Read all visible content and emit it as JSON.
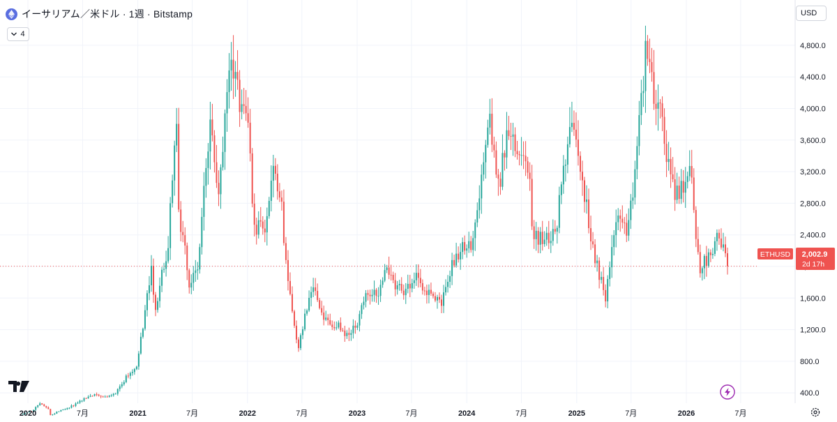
{
  "header": {
    "title": "イーサリアム／米ドル · 1週 · Bitstamp",
    "indicators_count": "4",
    "currency": "USD"
  },
  "price_label": {
    "symbol": "ETHUSD",
    "price": "2,002.9",
    "countdown": "2d 17h"
  },
  "colors": {
    "up": "#26a69a",
    "down": "#ef5350",
    "grid": "#f0f3fa",
    "axis_text": "#131722",
    "price_line": "#ef5350",
    "eth_badge": "#5a6ee0",
    "lightning": "#9c27b0"
  },
  "icons": {
    "logo": "tradingview-logo",
    "lightning": "lightning-icon",
    "settings": "gear-icon",
    "eth": "ethereum-icon",
    "chevron": "chevron-down-icon"
  },
  "chart_data": {
    "type": "candlestick",
    "symbol": "ETHUSD",
    "interval": "1W",
    "exchange": "Bitstamp",
    "current_price": 2002.9,
    "ylim": [
      0,
      5000
    ],
    "y_ticks": [
      400,
      800,
      1200,
      1600,
      2000,
      2400,
      2800,
      3200,
      3600,
      4000,
      4400,
      4800
    ],
    "y_tick_labels": [
      "400.0",
      "800.0",
      "1,200.0",
      "1,600.0",
      "2,000.0",
      "2,400.0",
      "2,800.0",
      "3,200.0",
      "3,600.0",
      "4,000.0",
      "4,400.0",
      "4,800.0"
    ],
    "x_ticks": [
      {
        "label": "2020",
        "date": "2020-01-01"
      },
      {
        "label": "7月",
        "date": "2020-07-01"
      },
      {
        "label": "2021",
        "date": "2021-01-01"
      },
      {
        "label": "7月",
        "date": "2021-07-01"
      },
      {
        "label": "2022",
        "date": "2022-01-01"
      },
      {
        "label": "7月",
        "date": "2022-07-01"
      },
      {
        "label": "2023",
        "date": "2023-01-01"
      },
      {
        "label": "7月",
        "date": "2023-07-01"
      },
      {
        "label": "2024",
        "date": "2024-01-01"
      },
      {
        "label": "7月",
        "date": "2024-07-01"
      },
      {
        "label": "2025",
        "date": "2025-01-01"
      },
      {
        "label": "7月",
        "date": "2025-07-01"
      },
      {
        "label": "2026",
        "date": "2026-01-01"
      },
      {
        "label": "7月",
        "date": "2026-07-01"
      }
    ],
    "grid": true,
    "weekly_close_keypoints": [
      [
        "2019-12-16",
        130
      ],
      [
        "2020-01-13",
        165
      ],
      [
        "2020-02-10",
        270
      ],
      [
        "2020-03-09",
        190
      ],
      [
        "2020-03-16",
        120
      ],
      [
        "2020-04-20",
        180
      ],
      [
        "2020-06-01",
        240
      ],
      [
        "2020-07-27",
        380
      ],
      [
        "2020-09-07",
        340
      ],
      [
        "2020-10-19",
        390
      ],
      [
        "2020-11-23",
        590
      ],
      [
        "2020-12-28",
        730
      ],
      [
        "2021-01-18",
        1250
      ],
      [
        "2021-02-15",
        1930
      ],
      [
        "2021-03-01",
        1500
      ],
      [
        "2021-04-12",
        2300
      ],
      [
        "2021-05-10",
        3950
      ],
      [
        "2021-05-17",
        2700
      ],
      [
        "2021-06-21",
        1800
      ],
      [
        "2021-07-19",
        2000
      ],
      [
        "2021-08-30",
        3900
      ],
      [
        "2021-09-27",
        2900
      ],
      [
        "2021-11-08",
        4750
      ],
      [
        "2021-12-06",
        4100
      ],
      [
        "2022-01-03",
        3700
      ],
      [
        "2022-01-24",
        2500
      ],
      [
        "2022-03-07",
        2550
      ],
      [
        "2022-03-28",
        3400
      ],
      [
        "2022-04-25",
        2800
      ],
      [
        "2022-05-09",
        2000
      ],
      [
        "2022-06-13",
        1100
      ],
      [
        "2022-06-20",
        1000
      ],
      [
        "2022-08-08",
        1800
      ],
      [
        "2022-08-29",
        1500
      ],
      [
        "2022-09-19",
        1300
      ],
      [
        "2022-11-07",
        1250
      ],
      [
        "2022-11-14",
        1150
      ],
      [
        "2022-12-26",
        1200
      ],
      [
        "2023-01-16",
        1550
      ],
      [
        "2023-02-13",
        1650
      ],
      [
        "2023-03-13",
        1700
      ],
      [
        "2023-04-10",
        2050
      ],
      [
        "2023-05-08",
        1800
      ],
      [
        "2023-06-12",
        1700
      ],
      [
        "2023-07-17",
        1880
      ],
      [
        "2023-08-21",
        1650
      ],
      [
        "2023-10-09",
        1580
      ],
      [
        "2023-11-13",
        2000
      ],
      [
        "2023-12-11",
        2250
      ],
      [
        "2024-01-22",
        2300
      ],
      [
        "2024-02-26",
        3250
      ],
      [
        "2024-03-11",
        3950
      ],
      [
        "2024-04-15",
        3000
      ],
      [
        "2024-05-20",
        3800
      ],
      [
        "2024-06-24",
        3300
      ],
      [
        "2024-07-29",
        3200
      ],
      [
        "2024-08-05",
        2500
      ],
      [
        "2024-09-09",
        2300
      ],
      [
        "2024-10-28",
        2500
      ],
      [
        "2024-11-11",
        3100
      ],
      [
        "2024-12-16",
        4000
      ],
      [
        "2025-01-06",
        3250
      ],
      [
        "2025-02-03",
        2750
      ],
      [
        "2025-03-03",
        2100
      ],
      [
        "2025-04-07",
        1600
      ],
      [
        "2025-05-12",
        2550
      ],
      [
        "2025-06-16",
        2450
      ],
      [
        "2025-07-07",
        3000
      ],
      [
        "2025-08-11",
        4400
      ],
      [
        "2025-08-18",
        4700
      ],
      [
        "2025-09-22",
        4050
      ],
      [
        "2025-10-13",
        3900
      ],
      [
        "2025-11-03",
        3250
      ],
      [
        "2025-11-24",
        2900
      ],
      [
        "2025-12-22",
        2950
      ],
      [
        "2026-01-12",
        3300
      ],
      [
        "2026-02-02",
        2350
      ],
      [
        "2026-02-16",
        1950
      ],
      [
        "2026-03-16",
        2150
      ],
      [
        "2026-04-13",
        2350
      ],
      [
        "2026-05-04",
        2250
      ],
      [
        "2026-05-18",
        2003
      ]
    ]
  }
}
